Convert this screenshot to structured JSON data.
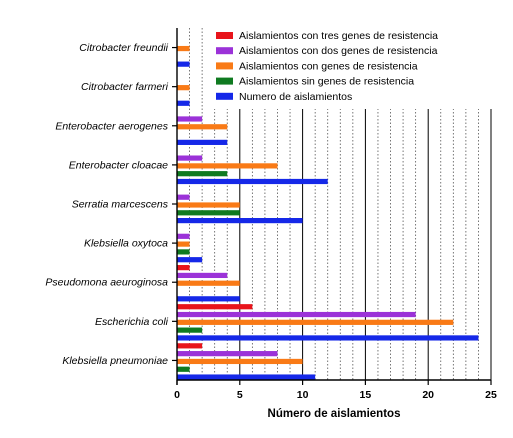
{
  "chart_data": {
    "type": "bar",
    "orientation": "horizontal",
    "categories": [
      "Citrobacter freundii",
      "Citrobacter farmeri",
      "Enterobacter aerogenes",
      "Enterobacter cloacae",
      "Serratia marcescens",
      "Klebsiella oxytoca",
      "Pseudomona aeuroginosa",
      "Escherichia coli",
      "Klebsiella pneumoniae"
    ],
    "series": [
      {
        "name": "Aislamientos con tres genes de resistencia",
        "color": "#e8141b",
        "values": [
          0,
          0,
          0,
          0,
          0,
          0,
          1,
          6,
          2
        ]
      },
      {
        "name": "Aislamientos con dos genes de resistencia",
        "color": "#9b32d8",
        "values": [
          0,
          0,
          2,
          2,
          1,
          1,
          4,
          19,
          8
        ]
      },
      {
        "name": "Aislamientos con genes de resistencia",
        "color": "#f97a16",
        "values": [
          1,
          1,
          4,
          8,
          5,
          1,
          5,
          22,
          10
        ]
      },
      {
        "name": "Aislamientos sin genes de resistencia",
        "color": "#0f7a20",
        "values": [
          0,
          0,
          0,
          4,
          5,
          1,
          0,
          2,
          1
        ]
      },
      {
        "name": "Numero de aislamientos",
        "color": "#1528e8",
        "values": [
          1,
          1,
          4,
          12,
          10,
          2,
          5,
          24,
          11
        ]
      }
    ],
    "x_ticks": [
      "0",
      "5",
      "10",
      "15",
      "20",
      "25"
    ],
    "xlim": [
      0,
      25
    ],
    "xlabel": "Número de aislamientos",
    "ylabel": "",
    "title": "",
    "grid": "vertical dotted minor, solid major",
    "legend_position": "top-right"
  }
}
